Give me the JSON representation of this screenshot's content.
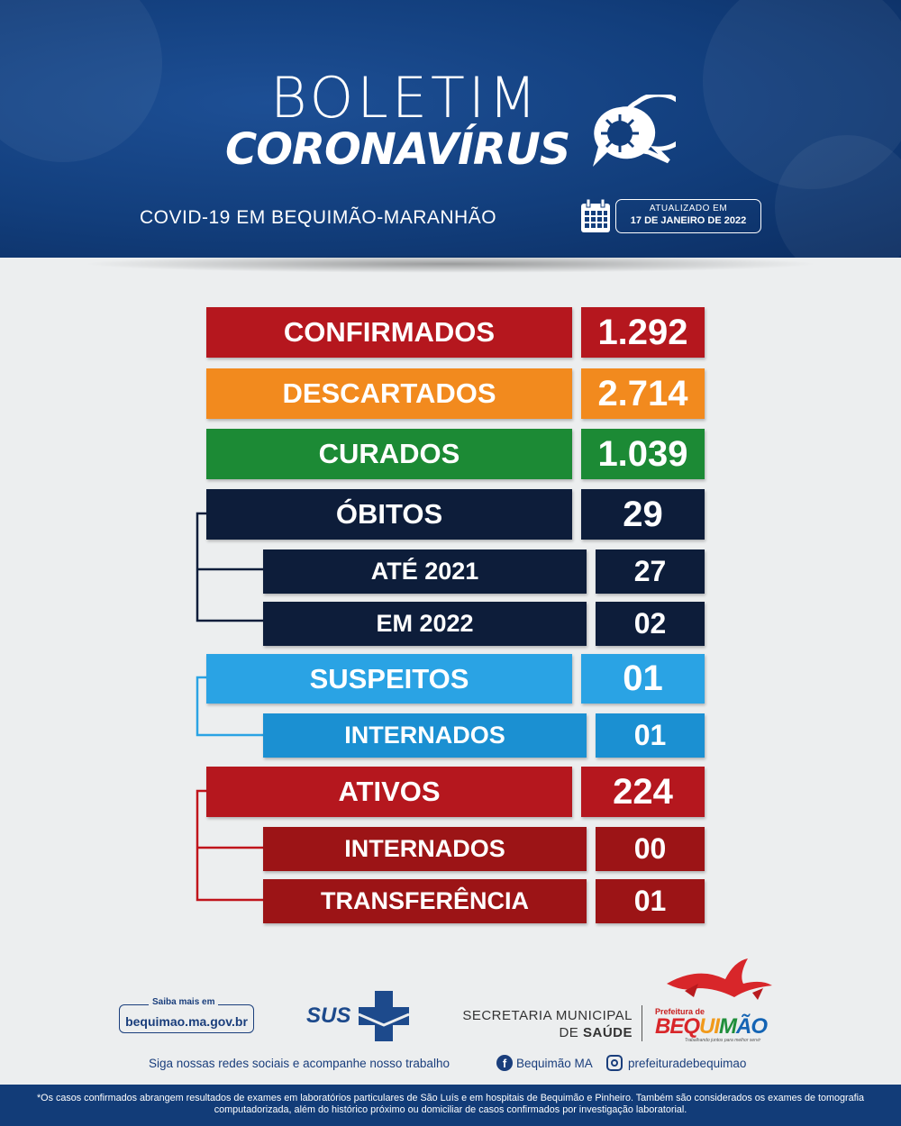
{
  "header": {
    "title_line1": "BOLETIM",
    "title_line2": "CORONAVÍRUS",
    "subtitle": "COVID-19 EM BEQUIMÃO-MARANHÃO",
    "updated_label": "ATUALIZADO EM",
    "updated_date": "17 DE JANEIRO DE 2022"
  },
  "stats": [
    {
      "label": "CONFIRMADOS",
      "value": "1.292",
      "color": "#b5171e"
    },
    {
      "label": "DESCARTADOS",
      "value": "2.714",
      "color": "#f28a1e"
    },
    {
      "label": "CURADOS",
      "value": "1.039",
      "color": "#1c8a35"
    },
    {
      "label": "ÓBITOS",
      "value": "29",
      "color": "#0d1d3a"
    },
    {
      "label": "ATÉ 2021",
      "value": "27",
      "color": "#0d1d3a"
    },
    {
      "label": "EM 2022",
      "value": "02",
      "color": "#0d1d3a"
    },
    {
      "label": "SUSPEITOS",
      "value": "01",
      "color": "#2aa3e4"
    },
    {
      "label": "INTERNADOS",
      "value": "01",
      "color": "#1b90d2"
    },
    {
      "label": "ATIVOS",
      "value": "224",
      "color": "#b5171e"
    },
    {
      "label": "INTERNADOS",
      "value": "00",
      "color": "#9c1416"
    },
    {
      "label": "TRANSFERÊNCIA",
      "value": "01",
      "color": "#9c1416"
    }
  ],
  "connector_colors": {
    "obitos": "#0d1d3a",
    "suspeitos": "#2aa3e4",
    "ativos": "#c0141b"
  },
  "footer": {
    "saiba_label": "Saiba mais em",
    "website": "bequimao.ma.gov.br",
    "sus": "SUS",
    "secretaria_line1": "SECRETARIA MUNICIPAL",
    "secretaria_line2_prefix": "DE ",
    "secretaria_line2_bold": "SAÚDE",
    "logo_prefeitura": "Prefeitura de",
    "logo_name_parts": [
      "BEQ",
      "UI",
      "M",
      "ÃO"
    ],
    "logo_slogan": "Trabalhando juntos para melhor servir",
    "social_text": "Siga nossas redes sociais e acompanhe nosso trabalho",
    "facebook": "Bequimão MA",
    "instagram": "prefeituradebequimao",
    "disclaimer": "*Os casos confirmados abrangem resultados de exames em laboratórios particulares de São Luís e em hospitais de Bequimão e Pinheiro. Também são considerados os exames de tomografia computadorizada, além do histórico próximo ou domiciliar de casos confirmados por investigação laboratorial."
  }
}
